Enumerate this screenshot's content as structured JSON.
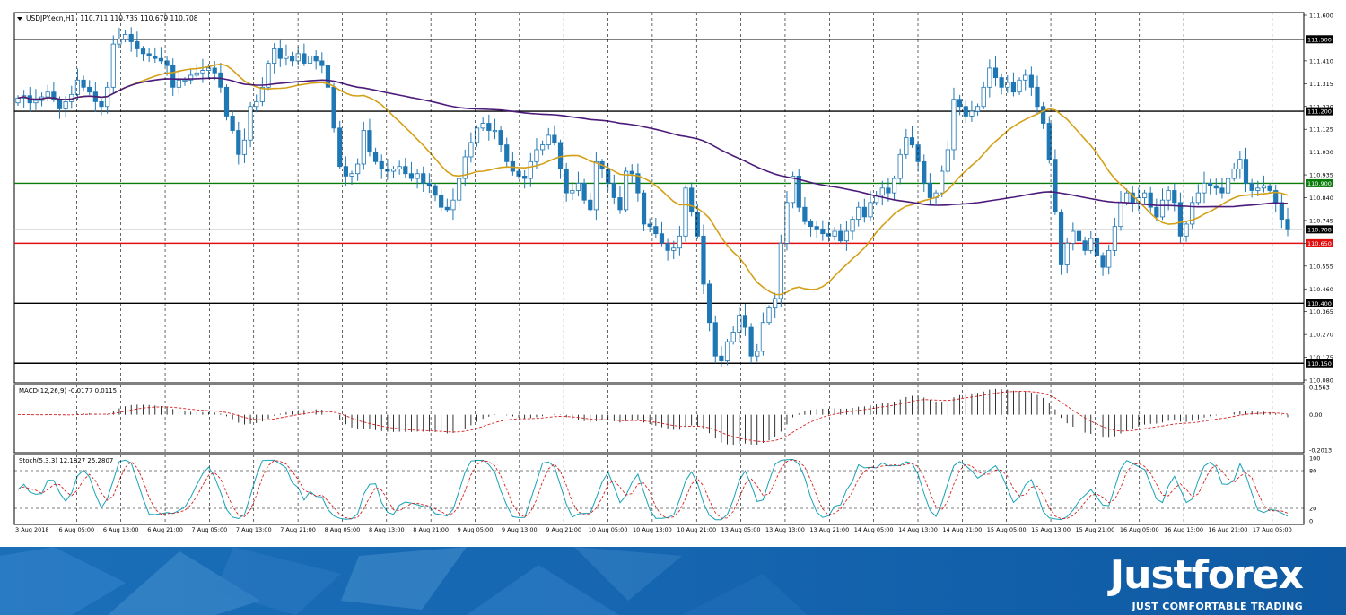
{
  "chart_data": {
    "type": "candlestick",
    "title": "USDJPY.ecn,H1",
    "ohlc_header": "110.711 110.735 110.679 110.708",
    "price_axis": {
      "ylim": [
        110.08,
        111.6
      ],
      "ticks": [
        "111.600",
        "111.410",
        "111.315",
        "111.220",
        "111.125",
        "111.030",
        "110.935",
        "110.840",
        "110.745",
        "110.650",
        "110.555",
        "110.460",
        "110.365",
        "110.270",
        "110.175",
        "110.080"
      ]
    },
    "x_labels": [
      "3 Aug 2018",
      "6 Aug 05:00",
      "6 Aug 13:00",
      "6 Aug 21:00",
      "7 Aug 05:00",
      "7 Aug 13:00",
      "7 Aug 21:00",
      "8 Aug 05:00",
      "8 Aug 13:00",
      "8 Aug 21:00",
      "9 Aug 05:00",
      "9 Aug 13:00",
      "9 Aug 21:00",
      "10 Aug 05:00",
      "10 Aug 13:00",
      "10 Aug 21:00",
      "13 Aug 05:00",
      "13 Aug 13:00",
      "13 Aug 21:00",
      "14 Aug 05:00",
      "14 Aug 13:00",
      "14 Aug 21:00",
      "15 Aug 05:00",
      "15 Aug 13:00",
      "15 Aug 21:00",
      "16 Aug 05:00",
      "16 Aug 13:00",
      "16 Aug 21:00",
      "17 Aug 05:00"
    ],
    "horizontal_levels": [
      {
        "price": 111.5,
        "label": "111.500",
        "color": "#000000"
      },
      {
        "price": 111.2,
        "label": "111.200",
        "color": "#000000"
      },
      {
        "price": 110.9,
        "label": "110.900",
        "color": "#0a7a0a"
      },
      {
        "price": 110.708,
        "label": "110.708",
        "color": "#000000",
        "current": true
      },
      {
        "price": 110.65,
        "label": "110.650",
        "color": "#e01010"
      },
      {
        "price": 110.4,
        "label": "110.400",
        "color": "#000000"
      },
      {
        "price": 110.15,
        "label": "110.150",
        "color": "#000000"
      }
    ],
    "candles": {
      "start_hour_index": 0,
      "seed_note_visible": false,
      "closes": [
        111.255,
        111.265,
        111.235,
        111.245,
        111.26,
        111.28,
        111.25,
        111.21,
        111.24,
        111.27,
        111.33,
        111.3,
        111.28,
        111.24,
        111.22,
        111.3,
        111.48,
        111.5,
        111.52,
        111.49,
        111.46,
        111.44,
        111.43,
        111.42,
        111.41,
        111.39,
        111.3,
        111.33,
        111.33,
        111.35,
        111.36,
        111.37,
        111.38,
        111.36,
        111.3,
        111.18,
        111.12,
        111.02,
        111.08,
        111.22,
        111.24,
        111.3,
        111.4,
        111.46,
        111.42,
        111.43,
        111.41,
        111.44,
        111.4,
        111.43,
        111.41,
        111.39,
        111.3,
        111.13,
        110.97,
        110.93,
        110.94,
        110.98,
        111.12,
        111.03,
        110.99,
        110.96,
        110.95,
        110.96,
        110.97,
        110.94,
        110.92,
        110.94,
        110.9,
        110.89,
        110.85,
        110.8,
        110.79,
        110.83,
        110.92,
        111.01,
        111.07,
        111.13,
        111.15,
        111.12,
        111.12,
        111.06,
        110.99,
        110.95,
        110.93,
        110.92,
        110.99,
        111.04,
        111.06,
        111.1,
        111.07,
        110.96,
        110.86,
        110.87,
        110.9,
        110.83,
        110.79,
        110.99,
        110.96,
        110.9,
        110.84,
        110.79,
        110.95,
        110.94,
        110.86,
        110.73,
        110.72,
        110.69,
        110.65,
        110.62,
        110.63,
        110.68,
        110.88,
        110.78,
        110.68,
        110.48,
        110.32,
        110.18,
        110.16,
        110.24,
        110.28,
        110.35,
        110.3,
        110.18,
        110.2,
        110.32,
        110.38,
        110.42,
        110.65,
        110.82,
        110.93,
        110.8,
        110.74,
        110.72,
        110.71,
        110.69,
        110.68,
        110.7,
        110.66,
        110.7,
        110.75,
        110.8,
        110.76,
        110.82,
        110.85,
        110.88,
        110.86,
        110.92,
        111.02,
        111.09,
        111.06,
        110.99,
        110.9,
        110.84,
        110.86,
        110.95,
        111.04,
        111.25,
        111.22,
        111.18,
        111.2,
        111.22,
        111.3,
        111.38,
        111.34,
        111.3,
        111.32,
        111.28,
        111.33,
        111.35,
        111.3,
        111.22,
        111.15,
        111.0,
        110.78,
        110.56,
        110.65,
        110.7,
        110.66,
        110.62,
        110.67,
        110.6,
        110.55,
        110.62,
        110.72,
        110.82,
        110.86,
        110.82,
        110.84,
        110.86,
        110.8,
        110.76,
        110.83,
        110.87,
        110.82,
        110.68,
        110.73,
        110.82,
        110.86,
        110.9,
        110.89,
        110.88,
        110.86,
        110.92,
        110.96,
        111.0,
        110.9,
        110.87,
        110.88,
        110.89,
        110.87,
        110.82,
        110.75,
        110.71
      ],
      "sma_short_period_visible": false,
      "sma_long_period_visible": false
    },
    "moving_averages": [
      {
        "color": "#d4a017"
      },
      {
        "color": "#4b1a7a"
      }
    ],
    "macd": {
      "label": "MACD(12,26,9) -0.0177 0.0115",
      "ticks": [
        "0.1563",
        "0.00",
        "-0.2013"
      ],
      "ylim": [
        -0.2013,
        0.1563
      ]
    },
    "stochastic": {
      "label": "Stoch(5,3,3) 12.1827 25.2807",
      "ticks": [
        "100",
        "80",
        "20",
        "0"
      ],
      "levels": [
        80,
        20
      ],
      "ylim": [
        0,
        100
      ]
    },
    "grid": true
  },
  "banner": {
    "brand": "Justforex",
    "tagline": "JUST COMFORTABLE TRADING",
    "color": "#1565b0"
  }
}
